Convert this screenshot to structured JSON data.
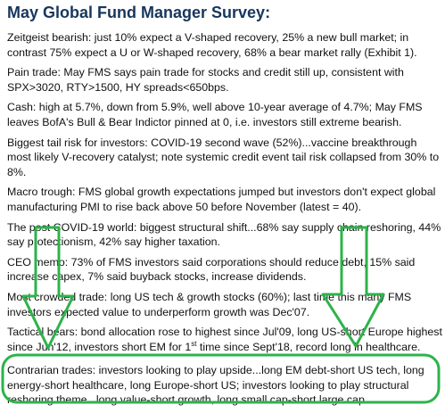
{
  "header": {
    "title": "May Global Fund Manager Survey:"
  },
  "paragraphs": [
    "Zeitgeist bearish: just 10% expect a V-shaped recovery, 25% a new bull market; in contrast 75% expect a U or W-shaped recovery, 68% a bear market rally (Exhibit 1).",
    "Pain trade: May FMS says pain trade for stocks and credit still up, consistent with SPX>3020, RTY>1500, HY spreads<650bps.",
    "Cash: high at 5.7%, down from 5.9%, well above 10-year average of 4.7%; May FMS leaves BofA's Bull & Bear Indictor pinned at 0, i.e. investors still extreme bearish.",
    "Biggest tail risk for investors: COVID-19 second wave (52%)...vaccine breakthrough most likely V-recovery catalyst; note systemic credit event tail risk collapsed from 30% to 8%.",
    "Macro trough: FMS global growth expectations jumped but investors don't expect global manufacturing PMI to rise back above 50 before November (latest = 40).",
    "The post COVID-19 world: biggest structural shift...68% say supply chain reshoring, 44% say protectionism, 42% say higher taxation.",
    "CEO memo: 73% of FMS investors said corporations should reduce debt, 15% said increase capex, 7% said buyback stocks, increase dividends.",
    "Most crowded trade: long US tech & growth stocks (60%); last time this many FMS investors expected value to underperform growth was Dec'07."
  ],
  "tactical": {
    "before": "Tactical bears: bond allocation rose to highest since Jul'09, long US-short Europe highest since Jun'12, investors short EM for 1",
    "sup": "st",
    "after": " time since Sept'18, record long in healthcare."
  },
  "contrarian": "Contrarian trades: investors looking to play upside...long EM debt-short US tech, long energy-short healthcare, long Europe-short US; investors looking to play structural reshoring theme...long value-short growth, long small cap-short large cap."
}
